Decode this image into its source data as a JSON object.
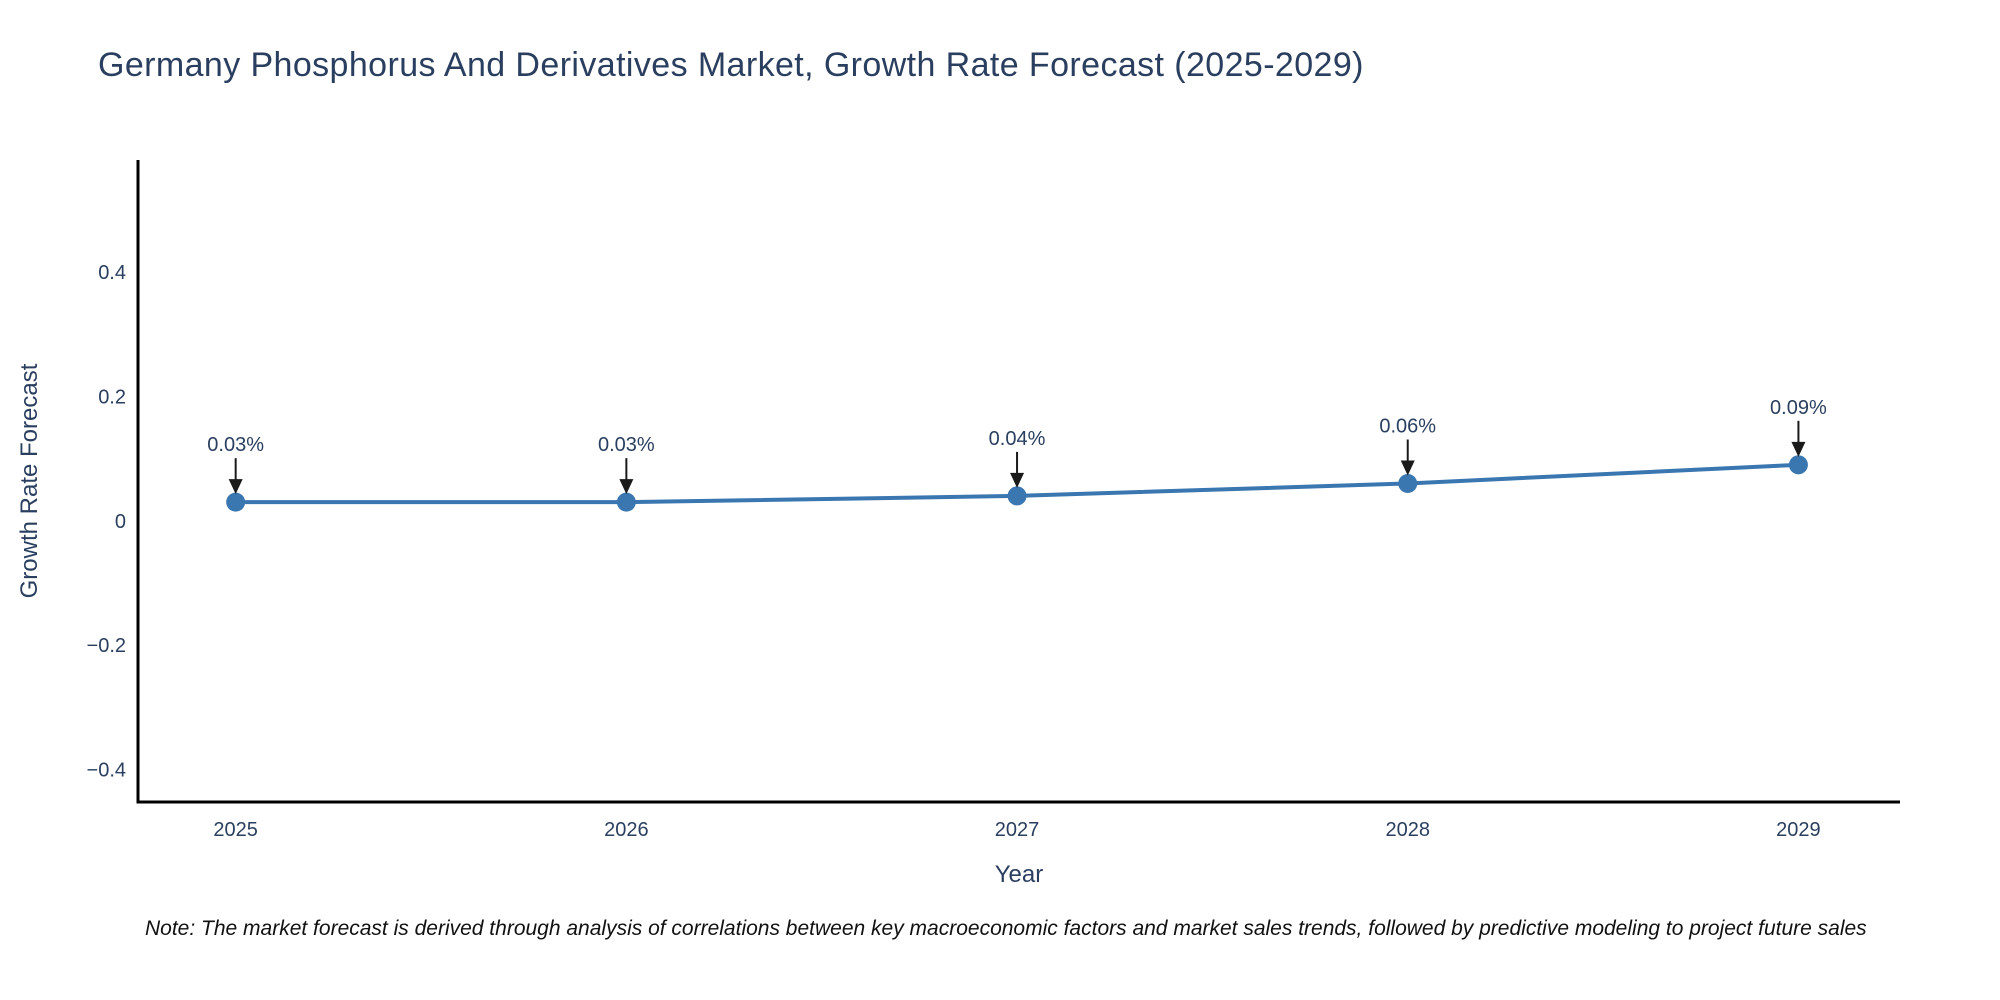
{
  "chart_data": {
    "type": "line",
    "title": "Germany Phosphorus And Derivatives Market, Growth Rate Forecast (2025-2029)",
    "xlabel": "Year",
    "ylabel": "Growth Rate Forecast",
    "x": [
      2025,
      2026,
      2027,
      2028,
      2029
    ],
    "categories": [
      "2025",
      "2026",
      "2027",
      "2028",
      "2029"
    ],
    "values": [
      0.03,
      0.03,
      0.04,
      0.06,
      0.09
    ],
    "point_labels": [
      "0.03%",
      "0.03%",
      "0.04%",
      "0.06%",
      "0.09%"
    ],
    "xlim": [
      2024.75,
      2029.26
    ],
    "ylim": [
      -0.452,
      0.58
    ],
    "yticks": {
      "values": [
        0.4,
        0.2,
        0,
        -0.2,
        -0.4
      ],
      "labels": [
        "0.4",
        "0.2",
        "0",
        "−0.2",
        "−0.4"
      ]
    },
    "xticks": {
      "values": [
        2025,
        2026,
        2027,
        2028,
        2029
      ],
      "labels": [
        "2025",
        "2026",
        "2027",
        "2028",
        "2029"
      ]
    },
    "grid": false,
    "legend": "none",
    "line_color": "#3a76b0",
    "marker_color": "#3a76b0",
    "axis_color": "#000000",
    "text_color": "#2a3f5f",
    "arrow_color": "#1a1a1a",
    "note": "Note: The market forecast is derived through analysis of correlations between key macroeconomic factors and market sales trends, followed by predictive modeling to project future sales"
  }
}
